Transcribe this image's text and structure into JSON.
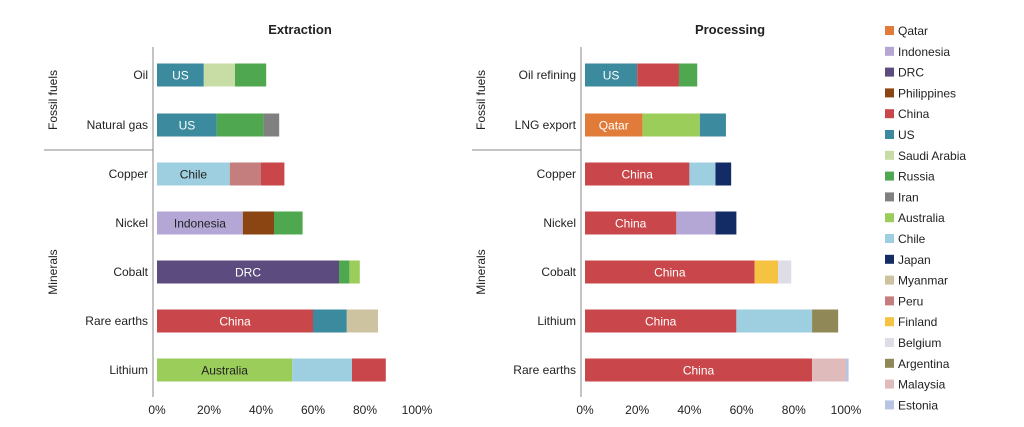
{
  "chart_data": [
    {
      "type": "bar",
      "orientation": "horizontal",
      "stacked": true,
      "title": "Extraction",
      "groups": [
        {
          "label": "Fossil fuels",
          "categories": [
            "Oil",
            "Natural gas"
          ]
        },
        {
          "label": "Minerals",
          "categories": [
            "Copper",
            "Nickel",
            "Cobalt",
            "Rare earths",
            "Lithium"
          ]
        }
      ],
      "xlim": [
        0,
        100
      ],
      "xticks": [
        "0%",
        "20%",
        "40%",
        "60%",
        "80%",
        "100%"
      ],
      "bars": [
        {
          "category": "Oil",
          "segments": [
            {
              "country": "US",
              "value": 18,
              "label": "US"
            },
            {
              "country": "Saudi Arabia",
              "value": 12
            },
            {
              "country": "Russia",
              "value": 12
            }
          ]
        },
        {
          "category": "Natural gas",
          "segments": [
            {
              "country": "US",
              "value": 23,
              "label": "US"
            },
            {
              "country": "Russia",
              "value": 18
            },
            {
              "country": "Iran",
              "value": 6
            }
          ]
        },
        {
          "category": "Copper",
          "segments": [
            {
              "country": "Chile",
              "value": 28,
              "label": "Chile"
            },
            {
              "country": "Peru",
              "value": 12
            },
            {
              "country": "China",
              "value": 9
            }
          ]
        },
        {
          "category": "Nickel",
          "segments": [
            {
              "country": "Indonesia",
              "value": 33,
              "label": "Indonesia"
            },
            {
              "country": "Philippines",
              "value": 12
            },
            {
              "country": "Russia",
              "value": 11
            }
          ]
        },
        {
          "category": "Cobalt",
          "segments": [
            {
              "country": "DRC",
              "value": 70,
              "label": "DRC"
            },
            {
              "country": "Russia",
              "value": 4
            },
            {
              "country": "Australia",
              "value": 4
            }
          ]
        },
        {
          "category": "Rare earths",
          "segments": [
            {
              "country": "China",
              "value": 60,
              "label": "China"
            },
            {
              "country": "US",
              "value": 13
            },
            {
              "country": "Myanmar",
              "value": 12
            }
          ]
        },
        {
          "category": "Lithium",
          "segments": [
            {
              "country": "Australia",
              "value": 52,
              "label": "Australia"
            },
            {
              "country": "Chile",
              "value": 23
            },
            {
              "country": "China",
              "value": 13
            }
          ]
        }
      ]
    },
    {
      "type": "bar",
      "orientation": "horizontal",
      "stacked": true,
      "title": "Processing",
      "groups": [
        {
          "label": "Fossil fuels",
          "categories": [
            "Oil refining",
            "LNG export"
          ]
        },
        {
          "label": "Minerals",
          "categories": [
            "Copper",
            "Nickel",
            "Cobalt",
            "Lithium",
            "Rare earths"
          ]
        }
      ],
      "xlim": [
        0,
        100
      ],
      "xticks": [
        "0%",
        "20%",
        "40%",
        "60%",
        "80%",
        "100%"
      ],
      "bars": [
        {
          "category": "Oil refining",
          "segments": [
            {
              "country": "US",
              "value": 20,
              "label": "US"
            },
            {
              "country": "China",
              "value": 16
            },
            {
              "country": "Russia",
              "value": 7
            }
          ]
        },
        {
          "category": "LNG export",
          "segments": [
            {
              "country": "Qatar",
              "value": 22,
              "label": "Qatar"
            },
            {
              "country": "Australia",
              "value": 22
            },
            {
              "country": "US",
              "value": 10
            }
          ]
        },
        {
          "category": "Copper",
          "segments": [
            {
              "country": "China",
              "value": 40,
              "label": "China"
            },
            {
              "country": "Chile",
              "value": 10
            },
            {
              "country": "Japan",
              "value": 6
            }
          ]
        },
        {
          "category": "Nickel",
          "segments": [
            {
              "country": "China",
              "value": 35,
              "label": "China"
            },
            {
              "country": "Indonesia",
              "value": 15
            },
            {
              "country": "Japan",
              "value": 8
            }
          ]
        },
        {
          "category": "Cobalt",
          "segments": [
            {
              "country": "China",
              "value": 65,
              "label": "China"
            },
            {
              "country": "Finland",
              "value": 9
            },
            {
              "country": "Belgium",
              "value": 5
            }
          ]
        },
        {
          "category": "Lithium",
          "segments": [
            {
              "country": "China",
              "value": 58,
              "label": "China"
            },
            {
              "country": "Chile",
              "value": 29
            },
            {
              "country": "Argentina",
              "value": 10
            }
          ]
        },
        {
          "category": "Rare earths",
          "segments": [
            {
              "country": "China",
              "value": 87,
              "label": "China"
            },
            {
              "country": "Malaysia",
              "value": 13
            },
            {
              "country": "Estonia",
              "value": 1
            }
          ]
        }
      ]
    }
  ],
  "legend": {
    "placement": "right",
    "items": [
      {
        "name": "Qatar",
        "color": "#E07B39"
      },
      {
        "name": "Indonesia",
        "color": "#B4A7D6"
      },
      {
        "name": "DRC",
        "color": "#5B4B7E"
      },
      {
        "name": "Philippines",
        "color": "#8B4513"
      },
      {
        "name": "China",
        "color": "#C9474A"
      },
      {
        "name": "US",
        "color": "#3B8A9E"
      },
      {
        "name": "Saudi Arabia",
        "color": "#C7DDA5"
      },
      {
        "name": "Russia",
        "color": "#4FA84F"
      },
      {
        "name": "Iran",
        "color": "#808080"
      },
      {
        "name": "Australia",
        "color": "#9ACD5A"
      },
      {
        "name": "Chile",
        "color": "#9DCFE0"
      },
      {
        "name": "Japan",
        "color": "#142C66"
      },
      {
        "name": "Myanmar",
        "color": "#CDC3A0"
      },
      {
        "name": "Peru",
        "color": "#C47E7E"
      },
      {
        "name": "Finland",
        "color": "#F5C242"
      },
      {
        "name": "Belgium",
        "color": "#DDDDE8"
      },
      {
        "name": "Argentina",
        "color": "#918857"
      },
      {
        "name": "Malaysia",
        "color": "#E0BBBB"
      },
      {
        "name": "Estonia",
        "color": "#B7C5E4"
      }
    ]
  }
}
